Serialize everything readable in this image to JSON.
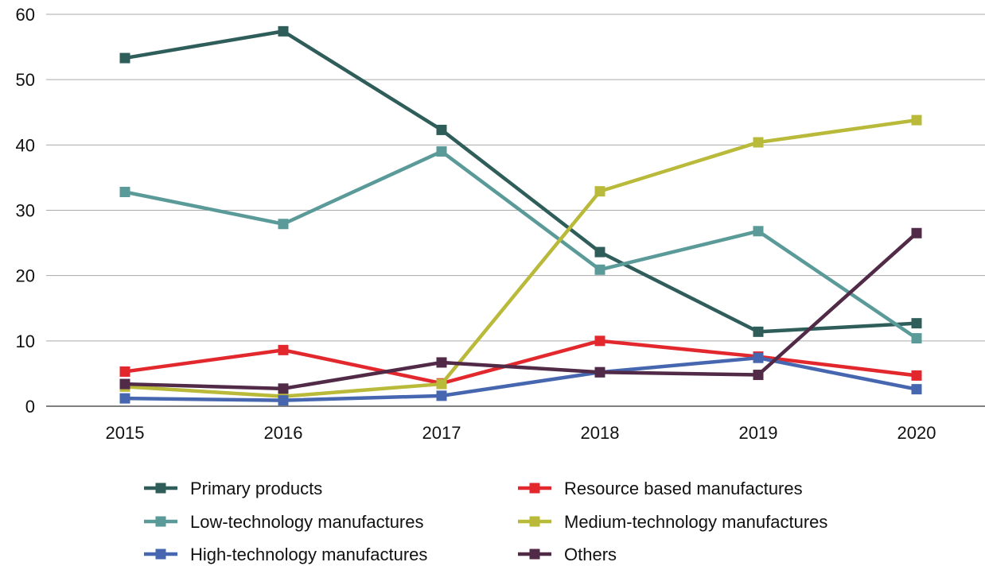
{
  "chart_data": {
    "type": "line",
    "title": "",
    "xlabel": "",
    "ylabel": "",
    "categories": [
      "2015",
      "2016",
      "2017",
      "2018",
      "2019",
      "2020"
    ],
    "ylim": [
      0,
      60
    ],
    "yticks": [
      0,
      10,
      20,
      30,
      40,
      50,
      60
    ],
    "grid": true,
    "legend_position": "bottom",
    "series": [
      {
        "name": "Primary products",
        "color": "#2f5e5a",
        "values": [
          53.3,
          57.4,
          42.3,
          23.6,
          11.4,
          12.7
        ]
      },
      {
        "name": "Resource based manufactures",
        "color": "#e2282d",
        "values": [
          5.3,
          8.6,
          3.5,
          10.0,
          7.6,
          4.7
        ]
      },
      {
        "name": "Low-technology manufactures",
        "color": "#5a9a99",
        "values": [
          32.8,
          27.9,
          39.0,
          20.9,
          26.8,
          10.4
        ]
      },
      {
        "name": "Medium-technology manufactures",
        "color": "#b9b93a",
        "values": [
          3.0,
          1.5,
          3.4,
          32.9,
          40.4,
          43.8
        ]
      },
      {
        "name": "High-technology manufactures",
        "color": "#4667b0",
        "values": [
          1.2,
          0.9,
          1.6,
          5.2,
          7.4,
          2.6
        ]
      },
      {
        "name": "Others",
        "color": "#512a47",
        "values": [
          3.4,
          2.7,
          6.7,
          5.2,
          4.8,
          26.5
        ]
      }
    ]
  }
}
